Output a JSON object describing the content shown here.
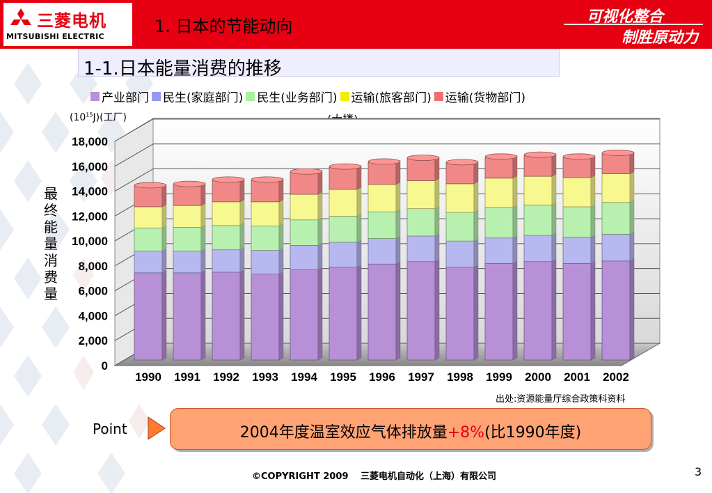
{
  "header": {
    "logo_cn": "三菱电机",
    "logo_en": "MITSUBISHI ELECTRIC",
    "section_title": "1. 日本的节能动向",
    "slogan_line1": "可视化整合",
    "slogan_line2": "制胜原动力"
  },
  "subtitle": "1-1.日本能量消费的推移",
  "unit_text": "(10",
  "unit_sup": "15",
  "unit_rest": "J)",
  "legend_sub": "(大楼)",
  "ylabel": "最终能量消费量",
  "source": "出处:资源能量厅综合政策科资料",
  "point_label": "Point",
  "callout": {
    "text_before": "2004年度温室效应气体排放量",
    "text_highlight": "+8%",
    "text_after": "(比1990年度)"
  },
  "copyright": "©COPYRIGHT 2009　 三菱电机自动化（上海）有限公司",
  "page_number": "3",
  "chart_data": {
    "type": "bar",
    "stacked": true,
    "style": "3d-cylinder",
    "categories": [
      "1990",
      "1991",
      "1992",
      "1993",
      "1994",
      "1995",
      "1996",
      "1997",
      "1998",
      "1999",
      "2000",
      "2001",
      "2002"
    ],
    "series": [
      {
        "name": "产业部门(工厂)",
        "color": "#b890d8",
        "values": [
          7000,
          7000,
          7050,
          6900,
          7250,
          7450,
          7700,
          7900,
          7450,
          7750,
          7900,
          7750,
          7950
        ]
      },
      {
        "name": "民生(家庭部门)",
        "color": "#b8b8f0",
        "values": [
          1750,
          1750,
          1800,
          1900,
          1950,
          2000,
          2050,
          2050,
          2100,
          2050,
          2100,
          2100,
          2150
        ]
      },
      {
        "name": "民生(业务部门)(大楼)",
        "color": "#b8f0b0",
        "values": [
          1850,
          1900,
          1950,
          1950,
          2050,
          2100,
          2150,
          2200,
          2300,
          2450,
          2450,
          2450,
          2550
        ]
      },
      {
        "name": "运输(旅客部门)",
        "color": "#f8f890",
        "values": [
          1700,
          1750,
          1900,
          1950,
          2050,
          2150,
          2200,
          2250,
          2300,
          2350,
          2300,
          2350,
          2300
        ]
      },
      {
        "name": "运输(货物部门)",
        "color": "#f08888",
        "values": [
          1650,
          1650,
          1700,
          1700,
          1750,
          1750,
          1750,
          1750,
          1650,
          1650,
          1650,
          1600,
          1600
        ]
      }
    ],
    "legend_labels": [
      "产业部门",
      "民生(家庭部门)",
      "民生(业务部门)",
      "运输(旅客部门)",
      "运输(货物部门)"
    ],
    "legend_extra": [
      "(工厂)",
      "(大楼)"
    ],
    "ylim": [
      0,
      18000
    ],
    "yticks": [
      "0",
      "2,000",
      "4,000",
      "6,000",
      "8,000",
      "10,000",
      "12,000",
      "14,000",
      "16,000",
      "18,000"
    ],
    "grid": true,
    "legend_position": "top"
  }
}
